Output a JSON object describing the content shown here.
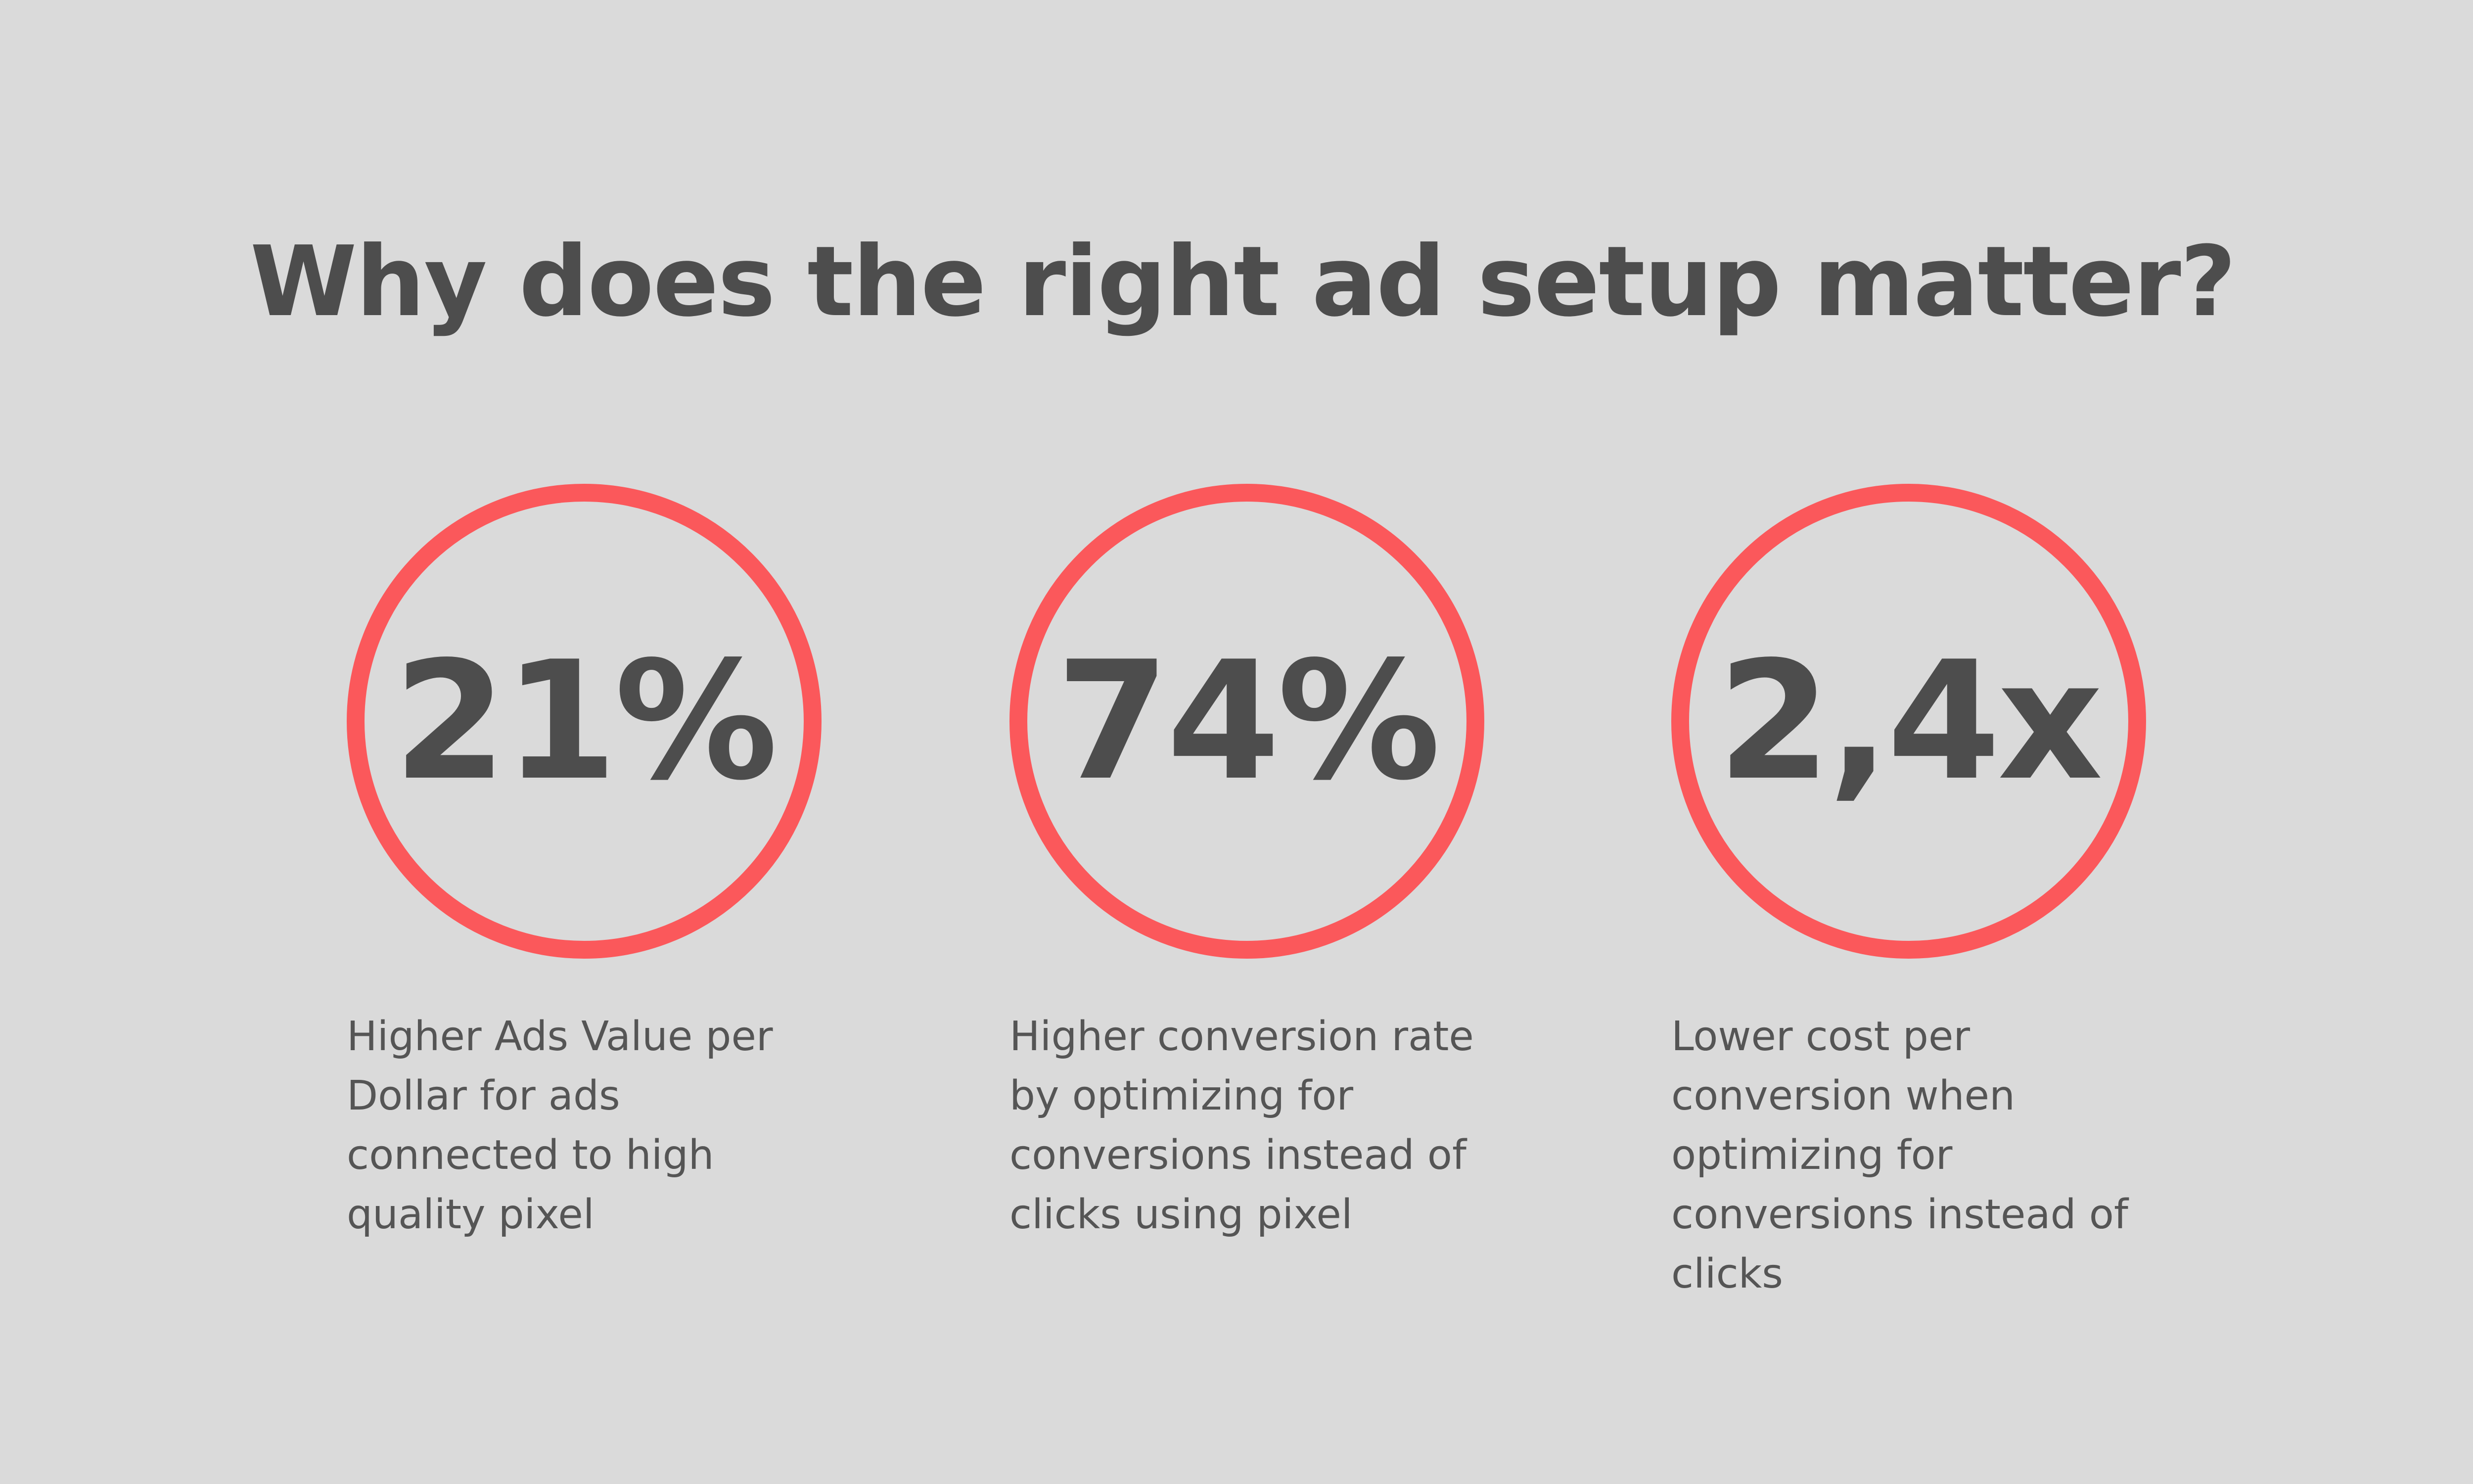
{
  "title": "Why does the right ad setup matter?",
  "accent_color": "#fb585b",
  "text_color": "#4d4d4d",
  "background_color": "#dadada",
  "stats": [
    {
      "value": "21%",
      "description": "Higher Ads Value per\nDollar for ads\nconnected to high\nquality pixel"
    },
    {
      "value": "74%",
      "description": "Higher conversion rate\nby optimizing for\nconversions instead of\nclicks using pixel"
    },
    {
      "value": "2,4x",
      "description": "Lower cost per\nconversion when\noptimizing for\nconversions instead of\nclicks"
    }
  ]
}
